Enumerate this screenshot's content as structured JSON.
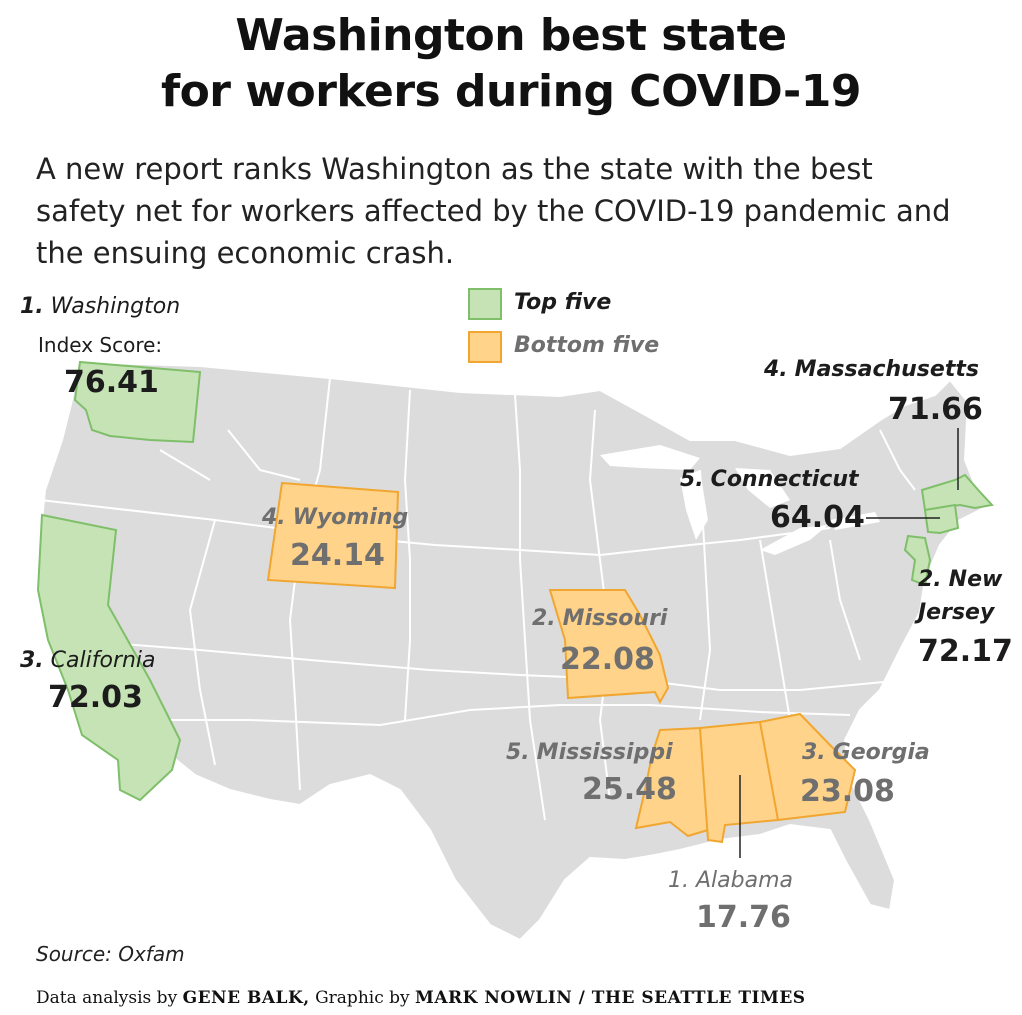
{
  "title": {
    "line1": "Washington best state",
    "line2": "for workers during COVID-19"
  },
  "intro": {
    "line1": "A new report ranks Washington as the state with the best",
    "line2": "safety net for workers affected by the COVID-19 pandemic and",
    "line3": "the ensuing economic crash."
  },
  "legend": {
    "top_label": "Top five",
    "bottom_label": "Bottom five",
    "top_color": "#c5e3b5",
    "top_border": "#7fbf6a",
    "bottom_color": "#ffd38a",
    "bottom_border": "#f0a630"
  },
  "map_colors": {
    "land": "#dcdcdc",
    "border": "#ffffff"
  },
  "top_states": [
    {
      "rank": "1.",
      "name": "Washington",
      "extra": "Index Score:",
      "score": "76.41"
    },
    {
      "rank": "2.",
      "name": "New",
      "name2": "Jersey",
      "score": "72.17"
    },
    {
      "rank": "3.",
      "name": "California",
      "score": "72.03"
    },
    {
      "rank": "4.",
      "name": "Massachusetts",
      "score": "71.66"
    },
    {
      "rank": "5.",
      "name": "Connecticut",
      "score": "64.04"
    }
  ],
  "bottom_states": [
    {
      "rank": "1.",
      "name": "Alabama",
      "score": "17.76"
    },
    {
      "rank": "2.",
      "name": "Missouri",
      "score": "22.08"
    },
    {
      "rank": "3.",
      "name": "Georgia",
      "score": "23.08"
    },
    {
      "rank": "4.",
      "name": "Wyoming",
      "score": "24.14"
    },
    {
      "rank": "5.",
      "name": "Mississippi",
      "score": "25.48"
    }
  ],
  "source": "Source: Oxfam",
  "credit": {
    "prefix": "Data analysis by",
    "analyst": "GENE BALK,",
    "middle": "Graphic by",
    "artist": "MARK NOWLIN / THE SEATTLE TIMES"
  }
}
